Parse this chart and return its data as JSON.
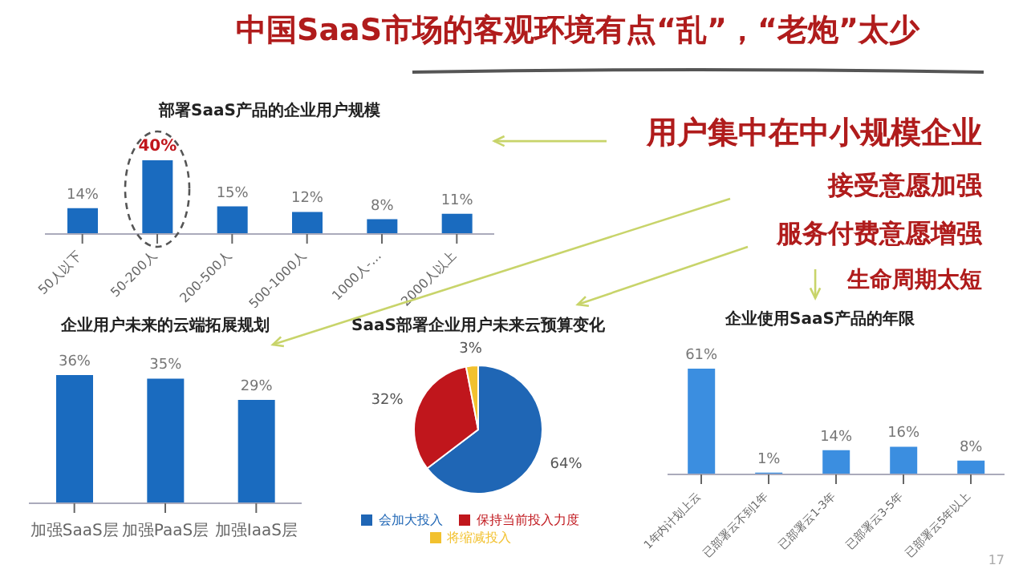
{
  "chart_data": [
    {
      "type": "other",
      "title": "中国SaaS市场的客观环境有点“乱”，“老炮”太少",
      "annotations": [
        "用户集中在中小规模企业",
        "接受意愿加强",
        "服务付费意愿增强",
        "生命周期太短",
        "17"
      ]
    },
    {
      "type": "bar",
      "title": "部署SaaS产品的企业用户规模",
      "categories": [
        "50人以下",
        "50-200人",
        "200-500人",
        "500-1000人",
        "1000人-…",
        "2000人以上"
      ],
      "values": [
        14,
        40,
        15,
        12,
        8,
        11
      ],
      "value_labels": [
        "14%",
        "40%",
        "15%",
        "12%",
        "8%",
        "11%"
      ],
      "color": "#1a6bbf"
    },
    {
      "type": "bar",
      "title": "企业用户未来的云端拓展规划",
      "categories": [
        "加强SaaS层",
        "加强PaaS层",
        "加强IaaS层"
      ],
      "values": [
        36,
        35,
        29
      ],
      "value_labels": [
        "36%",
        "35%",
        "29%"
      ],
      "color": "#1a6bbf"
    },
    {
      "type": "pie",
      "title": "SaaS部署企业用户未来云预算变化",
      "categories": [
        "会加大投入",
        "保持当前投入力度",
        "将缩减投入"
      ],
      "values": [
        64,
        32,
        3
      ],
      "value_labels": [
        "64%",
        "32%",
        "3%"
      ],
      "colors": [
        "#1f66b5",
        "#c0161c",
        "#f2c12e"
      ],
      "legend": "bottom"
    },
    {
      "type": "bar",
      "title": "企业使用SaaS产品的年限",
      "categories": [
        "1年内计划上云",
        "已部署云不到1年",
        "已部署云1-3年",
        "已部署云3-5年",
        "已部署云5年以上"
      ],
      "values": [
        61,
        1,
        14,
        16,
        8
      ],
      "value_labels": [
        "61%",
        "1%",
        "14%",
        "16%",
        "8%"
      ],
      "color": "#3b8ee0"
    }
  ]
}
